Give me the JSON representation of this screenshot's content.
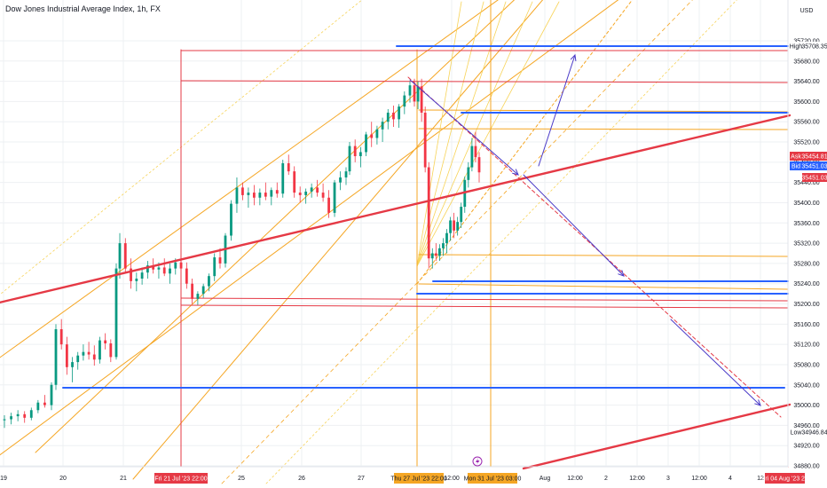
{
  "header": {
    "title": "Dow Jones Industrial Average Index, 1h, FX",
    "currency": "USD"
  },
  "colors": {
    "up": "#089981",
    "down": "#f23645",
    "red": "#e53945",
    "orange": "#f5a623",
    "yellow": "#f7d358",
    "blue": "#2962ff",
    "purple": "#4b3bc8",
    "grid": "#eef0f3"
  },
  "price_tags": {
    "ask": {
      "label": "Ask",
      "value": "35454.81"
    },
    "bid": {
      "label": "Bid",
      "value": "35451.03"
    },
    "last": "35451.03",
    "high": {
      "label": "High",
      "value": "35708.35"
    },
    "low": {
      "label": "Low",
      "value": "34946.84"
    }
  },
  "time_tags": [
    "Fri 21 Jul '23  22:00",
    "Thu 27 Jul '23  22:00",
    "Mon 31 Jul '23  03:00",
    "Fri 04 Aug '23  22"
  ],
  "chart_data": {
    "type": "candlestick",
    "title": "Dow Jones Industrial Average Index, 1h, FX",
    "y_range": [
      34880,
      35720
    ],
    "y_ticks": [
      35720,
      35680,
      35640,
      35600,
      35560,
      35520,
      35480,
      35440,
      35400,
      35360,
      35320,
      35280,
      35240,
      35200,
      35160,
      35120,
      35080,
      35040,
      35000,
      34960,
      34920,
      34880
    ],
    "x_ticks": [
      "19",
      "20",
      "21",
      "25",
      "26",
      "27",
      "12:00",
      "Aug",
      "12:00",
      "2",
      "12:00",
      "3",
      "12:00",
      "4",
      "12"
    ],
    "candles": [
      [
        34970,
        34980,
        34955,
        34972
      ],
      [
        34972,
        34985,
        34962,
        34978
      ],
      [
        34978,
        34990,
        34968,
        34982
      ],
      [
        34982,
        34988,
        34965,
        34975
      ],
      [
        34975,
        34995,
        34970,
        34990
      ],
      [
        34990,
        35010,
        34984,
        35005
      ],
      [
        35005,
        35020,
        34995,
        35000
      ],
      [
        35000,
        35045,
        34990,
        35040
      ],
      [
        35040,
        35160,
        35030,
        35150
      ],
      [
        35150,
        35170,
        35110,
        35120
      ],
      [
        35120,
        35135,
        35060,
        35075
      ],
      [
        35075,
        35095,
        35045,
        35085
      ],
      [
        35085,
        35105,
        35070,
        35098
      ],
      [
        35098,
        35120,
        35088,
        35105
      ],
      [
        35105,
        35125,
        35090,
        35100
      ],
      [
        35100,
        35118,
        35078,
        35090
      ],
      [
        35090,
        35135,
        35082,
        35128
      ],
      [
        35128,
        35142,
        35110,
        35122
      ],
      [
        35122,
        35130,
        35085,
        35095
      ],
      [
        35095,
        35280,
        35090,
        35270
      ],
      [
        35270,
        35340,
        35250,
        35320
      ],
      [
        35320,
        35330,
        35260,
        35270
      ],
      [
        35270,
        35290,
        35230,
        35245
      ],
      [
        35245,
        35262,
        35225,
        35250
      ],
      [
        35250,
        35272,
        35238,
        35262
      ],
      [
        35262,
        35285,
        35250,
        35276
      ],
      [
        35276,
        35290,
        35260,
        35268
      ],
      [
        35268,
        35282,
        35250,
        35272
      ],
      [
        35272,
        35290,
        35255,
        35260
      ],
      [
        35260,
        35280,
        35240,
        35270
      ],
      [
        35270,
        35290,
        35258,
        35282
      ],
      [
        35282,
        35296,
        35262,
        35270
      ],
      [
        35270,
        35282,
        35230,
        35240
      ],
      [
        35240,
        35250,
        35200,
        35210
      ],
      [
        35210,
        35225,
        35198,
        35220
      ],
      [
        35220,
        35240,
        35212,
        35235
      ],
      [
        35235,
        35260,
        35225,
        35255
      ],
      [
        35255,
        35300,
        35245,
        35292
      ],
      [
        35292,
        35310,
        35270,
        35280
      ],
      [
        35280,
        35340,
        35272,
        35335
      ],
      [
        35335,
        35405,
        35325,
        35398
      ],
      [
        35398,
        35450,
        35380,
        35430
      ],
      [
        35430,
        35440,
        35405,
        35415
      ],
      [
        35415,
        35430,
        35390,
        35420
      ],
      [
        35420,
        35435,
        35395,
        35410
      ],
      [
        35410,
        35428,
        35395,
        35420
      ],
      [
        35420,
        35440,
        35405,
        35412
      ],
      [
        35412,
        35430,
        35395,
        35425
      ],
      [
        35425,
        35440,
        35410,
        35418
      ],
      [
        35418,
        35485,
        35410,
        35478
      ],
      [
        35478,
        35495,
        35455,
        35462
      ],
      [
        35462,
        35472,
        35410,
        35420
      ],
      [
        35420,
        35432,
        35400,
        35415
      ],
      [
        35415,
        35428,
        35398,
        35422
      ],
      [
        35422,
        35438,
        35410,
        35430
      ],
      [
        35430,
        35445,
        35412,
        35420
      ],
      [
        35420,
        35438,
        35402,
        35410
      ],
      [
        35410,
        35425,
        35370,
        35380
      ],
      [
        35380,
        35445,
        35372,
        35440
      ],
      [
        35440,
        35462,
        35425,
        35450
      ],
      [
        35450,
        35470,
        35435,
        35462
      ],
      [
        35462,
        35520,
        35455,
        35512
      ],
      [
        35512,
        35525,
        35480,
        35492
      ],
      [
        35492,
        35510,
        35470,
        35500
      ],
      [
        35500,
        35540,
        35492,
        35535
      ],
      [
        35535,
        35560,
        35510,
        35528
      ],
      [
        35528,
        35552,
        35515,
        35545
      ],
      [
        35545,
        35568,
        35520,
        35560
      ],
      [
        35560,
        35585,
        35545,
        35578
      ],
      [
        35578,
        35592,
        35550,
        35565
      ],
      [
        35565,
        35595,
        35548,
        35590
      ],
      [
        35590,
        35620,
        35575,
        35612
      ],
      [
        35612,
        35640,
        35598,
        35632
      ],
      [
        35632,
        35645,
        35590,
        35600
      ],
      [
        35600,
        35640,
        35585,
        35630
      ],
      [
        35630,
        35645,
        35560,
        35578
      ],
      [
        35578,
        35590,
        35460,
        35470
      ],
      [
        35470,
        35480,
        35270,
        35290
      ],
      [
        35290,
        35310,
        35270,
        35300
      ],
      [
        35300,
        35320,
        35285,
        35295
      ],
      [
        35295,
        35318,
        35285,
        35310
      ],
      [
        35310,
        35330,
        35295,
        35320
      ],
      [
        35320,
        35348,
        35300,
        35340
      ],
      [
        35340,
        35372,
        35325,
        35365
      ],
      [
        35365,
        35380,
        35330,
        35345
      ],
      [
        35345,
        35372,
        35335,
        35362
      ],
      [
        35362,
        35400,
        35350,
        35392
      ],
      [
        35392,
        35452,
        35380,
        35445
      ],
      [
        35445,
        35480,
        35430,
        35470
      ],
      [
        35470,
        35528,
        35462,
        35512
      ],
      [
        35512,
        35540,
        35480,
        35490
      ],
      [
        35490,
        35500,
        35440,
        35460
      ],
      [
        35460,
        35478,
        35440,
        35470
      ],
      [
        35470,
        35482,
        35445,
        35451
      ]
    ]
  }
}
